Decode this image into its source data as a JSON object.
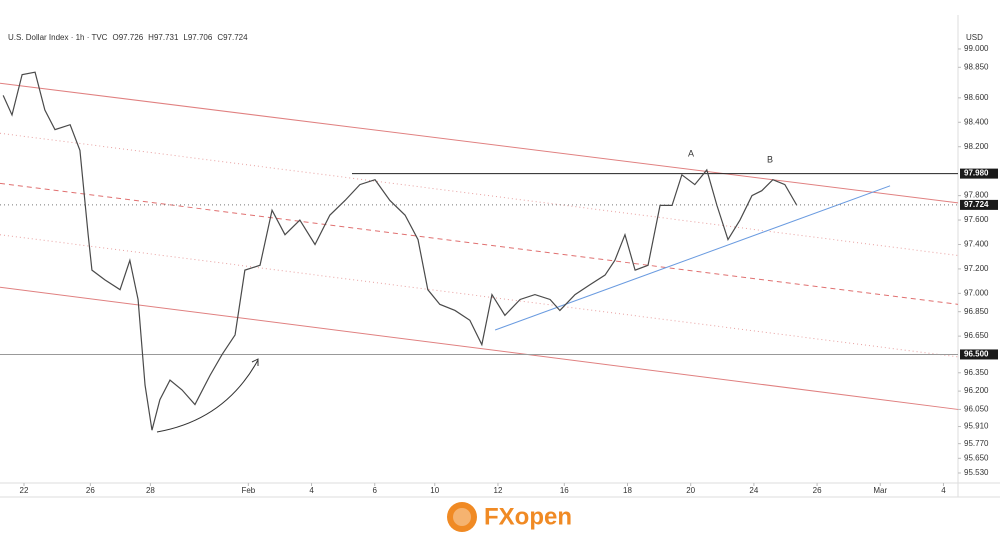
{
  "chart_data": {
    "type": "line",
    "title": "U.S. Dollar Index · 1h · TVC",
    "ohlc": [
      {
        "label": "O",
        "value": 97.726
      },
      {
        "label": "H",
        "value": 97.731
      },
      {
        "label": "L",
        "value": 97.706
      },
      {
        "label": "C",
        "value": 97.724
      }
    ],
    "y_axis_label": "USD",
    "x": [
      -0.66,
      -0.38,
      -0.06,
      0.35,
      0.66,
      0.98,
      1.46,
      1.77,
      2.03,
      2.15,
      2.56,
      3.04,
      3.35,
      3.61,
      3.83,
      4.05,
      4.3,
      4.62,
      5.0,
      5.41,
      5.89,
      6.27,
      6.68,
      6.99,
      7.47,
      7.85,
      8.26,
      8.73,
      9.21,
      9.68,
      10.16,
      10.63,
      11.11,
      11.58,
      12.06,
      12.47,
      12.78,
      13.16,
      13.64,
      14.11,
      14.49,
      14.81,
      15.22,
      15.7,
      16.17,
      16.65,
      16.96,
      17.44,
      17.91,
      18.39,
      18.7,
      19.02,
      19.34,
      19.75,
      20.13,
      20.51,
      20.82,
      21.23,
      21.61,
      21.93,
      22.28,
      22.66,
      23.04,
      23.35,
      23.7,
      24.08,
      24.46
    ],
    "series": [
      {
        "name": "U.S. Dollar Index",
        "color": "#4a4a4a",
        "values": [
          98.62,
          98.46,
          98.79,
          98.81,
          98.5,
          98.34,
          98.38,
          98.17,
          97.48,
          97.19,
          97.11,
          97.03,
          97.27,
          96.95,
          96.25,
          95.88,
          96.13,
          96.29,
          96.21,
          96.09,
          96.33,
          96.5,
          96.66,
          97.19,
          97.23,
          97.68,
          97.48,
          97.6,
          97.4,
          97.64,
          97.76,
          97.89,
          97.93,
          97.76,
          97.64,
          97.44,
          97.03,
          96.91,
          96.86,
          96.78,
          96.58,
          96.99,
          96.82,
          96.95,
          96.99,
          96.95,
          96.86,
          96.99,
          97.07,
          97.15,
          97.27,
          97.48,
          97.19,
          97.23,
          97.72,
          97.72,
          97.97,
          97.89,
          98.01,
          97.72,
          97.44,
          97.6,
          97.8,
          97.84,
          97.93,
          97.89,
          97.72
        ]
      }
    ],
    "xlim": [
      -0.76,
      29.56
    ],
    "xticks": [
      {
        "value": 0,
        "label": "22"
      },
      {
        "value": 2.1,
        "label": "26"
      },
      {
        "value": 4,
        "label": "28"
      },
      {
        "value": 7.1,
        "label": "Feb"
      },
      {
        "value": 9.1,
        "label": "4"
      },
      {
        "value": 11.1,
        "label": "6"
      },
      {
        "value": 13.0,
        "label": "10"
      },
      {
        "value": 15.0,
        "label": "12"
      },
      {
        "value": 17.1,
        "label": "16"
      },
      {
        "value": 19.1,
        "label": "18"
      },
      {
        "value": 21.1,
        "label": "20"
      },
      {
        "value": 23.1,
        "label": "24"
      },
      {
        "value": 25.1,
        "label": "26"
      },
      {
        "value": 27.1,
        "label": "Mar"
      },
      {
        "value": 29.1,
        "label": "4"
      }
    ],
    "ylim": [
      95.448,
      99.278
    ],
    "yticks": [
      {
        "value": 99,
        "label": "99.000"
      },
      {
        "value": 98.85,
        "label": "98.850"
      },
      {
        "value": 98.6,
        "label": "98.600"
      },
      {
        "value": 98.4,
        "label": "98.400"
      },
      {
        "value": 98.2,
        "label": "98.200"
      },
      {
        "value": 97.8,
        "label": "97.800"
      },
      {
        "value": 97.6,
        "label": "97.600"
      },
      {
        "value": 97.4,
        "label": "97.400"
      },
      {
        "value": 97.2,
        "label": "97.200"
      },
      {
        "value": 97,
        "label": "97.000"
      },
      {
        "value": 96.85,
        "label": "96.850"
      },
      {
        "value": 96.65,
        "label": "96.650"
      },
      {
        "value": 96.35,
        "label": "96.350"
      },
      {
        "value": 96.2,
        "label": "96.200"
      },
      {
        "value": 96.05,
        "label": "96.050"
      },
      {
        "value": 95.91,
        "label": "95.910"
      },
      {
        "value": 95.77,
        "label": "95.770"
      },
      {
        "value": 95.65,
        "label": "95.650"
      },
      {
        "value": 95.53,
        "label": "95.530"
      }
    ],
    "levels": [
      {
        "value": 97.98,
        "label": "97.980",
        "start": 10.38,
        "color": "#222222",
        "style": "solid"
      },
      {
        "value": 97.724,
        "label": "97.724",
        "start": -0.76,
        "color": "#777777",
        "style": "dotted"
      },
      {
        "value": 96.5,
        "label": "96.500",
        "start": -0.76,
        "color": "#999999",
        "style": "solid"
      }
    ],
    "trend_lines": [
      {
        "x": [
          -0.76,
          29.56
        ],
        "y": [
          98.72,
          97.74
        ],
        "color": "#e08080",
        "style": "solid"
      },
      {
        "x": [
          -0.76,
          29.56
        ],
        "y": [
          98.31,
          97.31
        ],
        "color": "#e8a0a0",
        "style": "dotted"
      },
      {
        "x": [
          -0.76,
          29.56
        ],
        "y": [
          97.9,
          96.91
        ],
        "color": "#e07070",
        "style": "dashed"
      },
      {
        "x": [
          -0.76,
          29.56
        ],
        "y": [
          97.48,
          96.48
        ],
        "color": "#e8a0a0",
        "style": "dotted"
      },
      {
        "x": [
          -0.76,
          29.56
        ],
        "y": [
          97.05,
          96.05
        ],
        "color": "#e08080",
        "style": "solid"
      },
      {
        "x": [
          14.91,
          27.41
        ],
        "y": [
          96.7,
          97.88
        ],
        "color": "#6a9be0",
        "style": "solid"
      }
    ],
    "annotations": [
      "A",
      "B"
    ],
    "brand": "FXopen"
  }
}
